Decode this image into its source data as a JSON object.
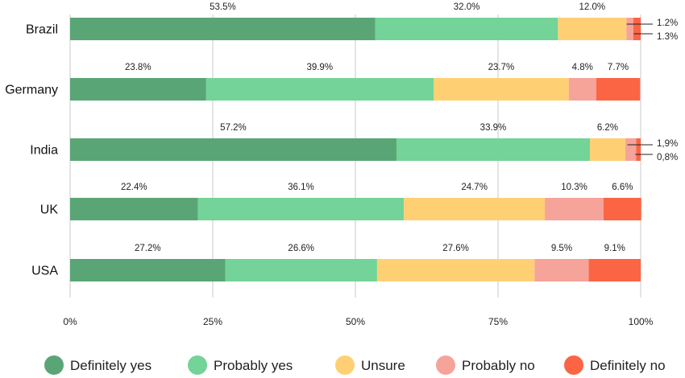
{
  "chart_data": {
    "type": "bar",
    "orientation": "horizontal",
    "stacked": true,
    "categories": [
      "Brazil",
      "Germany",
      "India",
      "UK",
      "USA"
    ],
    "series": [
      {
        "name": "Definitely yes",
        "color": "#5aa575",
        "values": [
          53.5,
          23.8,
          57.2,
          22.4,
          27.2
        ],
        "labels": [
          "53.5%",
          "23.8%",
          "57.2%",
          "22.4%",
          "27.2%"
        ]
      },
      {
        "name": "Probably yes",
        "color": "#73d398",
        "values": [
          32.0,
          39.9,
          33.9,
          36.1,
          26.6
        ],
        "labels": [
          "32.0%",
          "39.9%",
          "33.9%",
          "36.1%",
          "26.6%"
        ]
      },
      {
        "name": "Unsure",
        "color": "#ffd073",
        "values": [
          12.0,
          23.7,
          6.2,
          24.7,
          27.6
        ],
        "labels": [
          "12.0%",
          "23.7%",
          "6.2%",
          "24.7%",
          "27.6%"
        ]
      },
      {
        "name": "Probably no",
        "color": "#f6a39a",
        "values": [
          1.2,
          4.8,
          1.9,
          10.3,
          9.5
        ],
        "labels": [
          "1.2%",
          "4.8%",
          "1,9%",
          "10.3%",
          "9.5%"
        ]
      },
      {
        "name": "Definitely no",
        "color": "#fb6544",
        "values": [
          1.3,
          7.7,
          0.8,
          6.6,
          9.1
        ],
        "labels": [
          "1.3%",
          "7.7%",
          "0,8%",
          "6.6%",
          "9.1%"
        ]
      }
    ],
    "xlim": [
      0,
      100
    ],
    "x_ticks": [
      0,
      25,
      50,
      75,
      100
    ],
    "x_tick_labels": [
      "0%",
      "25%",
      "50%",
      "75%",
      "100%"
    ],
    "grid": "vertical",
    "legend": "bottom",
    "title": "",
    "xlabel": "",
    "ylabel": ""
  }
}
